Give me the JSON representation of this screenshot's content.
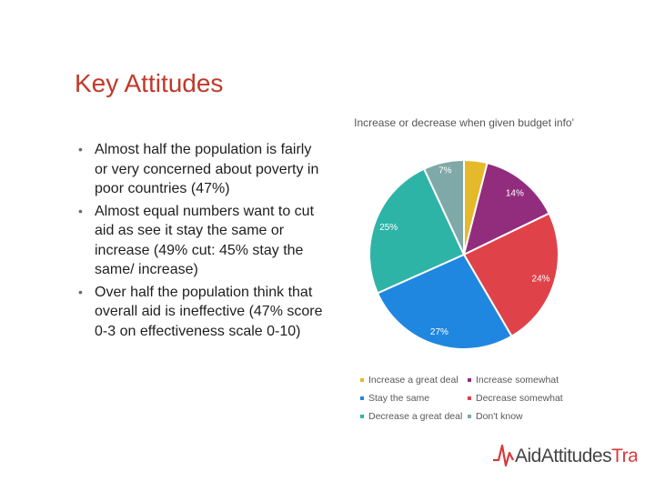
{
  "slide": {
    "title": "Key Attitudes"
  },
  "bullets": [
    "Almost half the population is fairly or very concerned about poverty in poor countries (47%)",
    "Almost equal numbers want to cut aid as see it stay the same or increase (49% cut: 45% stay the same/ increase)",
    "Over half the population think that overall aid is ineffective (47% score 0-3 on effectiveness scale 0-10)"
  ],
  "bullet_icon": "bullet-dot",
  "chart_data": {
    "type": "pie",
    "title": "Increase or decrease when given budget info'",
    "categories": [
      "Increase a great deal",
      "Increase somewhat",
      "Stay the same",
      "Decrease somewhat",
      "Decrease a great deal",
      "Don't know"
    ],
    "values": [
      4,
      14,
      27,
      24,
      25,
      7
    ],
    "labels": [
      "4%",
      "14%",
      "27%",
      "24%",
      "25%",
      "7%"
    ],
    "colors": [
      "#e4b92a",
      "#922d7e",
      "#1f87e0",
      "#e0424a",
      "#2eb4a7",
      "#7fa8a8"
    ],
    "slice_order": [
      "Increase a great deal",
      "Increase somewhat",
      "Decrease somewhat",
      "Stay the same",
      "Decrease a great deal",
      "Don't know"
    ],
    "legend_placement": "bottom",
    "legend_order": [
      "Increase a great deal",
      "Increase somewhat",
      "Stay the same",
      "Decrease somewhat",
      "Decrease a great deal",
      "Don't know"
    ]
  },
  "logo": {
    "prefix": "Aid",
    "middle": "Attitudes",
    "suffix": "Tracker",
    "accent_color": "#d83a3a"
  }
}
